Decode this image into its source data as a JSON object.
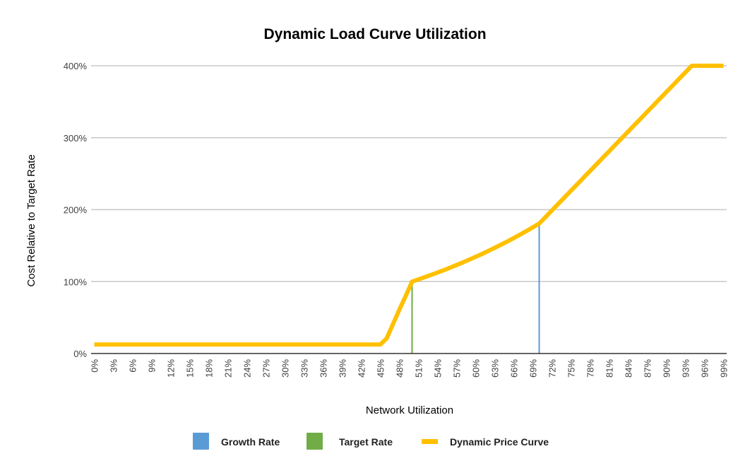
{
  "chart_data": {
    "type": "line",
    "title": "Dynamic Load Curve Utilization",
    "xlabel": "Network Utilization",
    "ylabel": "Cost Relative to Target Rate",
    "x_unit": "%",
    "x_tick_step": 3,
    "x": [
      0,
      1,
      2,
      3,
      4,
      5,
      6,
      7,
      8,
      9,
      10,
      11,
      12,
      13,
      14,
      15,
      16,
      17,
      18,
      19,
      20,
      21,
      22,
      23,
      24,
      25,
      26,
      27,
      28,
      29,
      30,
      31,
      32,
      33,
      34,
      35,
      36,
      37,
      38,
      39,
      40,
      41,
      42,
      43,
      44,
      45,
      46,
      47,
      48,
      49,
      50,
      51,
      52,
      53,
      54,
      55,
      56,
      57,
      58,
      59,
      60,
      61,
      62,
      63,
      64,
      65,
      66,
      67,
      68,
      69,
      70,
      71,
      72,
      73,
      74,
      75,
      76,
      77,
      78,
      79,
      80,
      81,
      82,
      83,
      84,
      85,
      86,
      87,
      88,
      89,
      90,
      91,
      92,
      93,
      94,
      95,
      96,
      97,
      98,
      99
    ],
    "yticks": [
      "0%",
      "100%",
      "200%",
      "300%",
      "400%"
    ],
    "ylim": [
      0,
      400
    ],
    "grid": true,
    "legend_position": "bottom",
    "series": [
      {
        "name": "Growth Rate",
        "kind": "bar",
        "color": "#5b9bd5",
        "points": [
          {
            "x": 70,
            "y": 180.6
          }
        ]
      },
      {
        "name": "Target Rate",
        "kind": "bar",
        "color": "#70ad47",
        "points": [
          {
            "x": 50,
            "y": 100
          }
        ]
      },
      {
        "name": "Dynamic Price Curve",
        "kind": "line",
        "color": "#ffc000",
        "values": [
          12.5,
          12.5,
          12.5,
          12.5,
          12.5,
          12.5,
          12.5,
          12.5,
          12.5,
          12.5,
          12.5,
          12.5,
          12.5,
          12.5,
          12.5,
          12.5,
          12.5,
          12.5,
          12.5,
          12.5,
          12.5,
          12.5,
          12.5,
          12.5,
          12.5,
          12.5,
          12.5,
          12.5,
          12.5,
          12.5,
          12.5,
          12.5,
          12.5,
          12.5,
          12.5,
          12.5,
          12.5,
          12.5,
          12.5,
          12.5,
          12.5,
          12.5,
          12.5,
          12.5,
          12.5,
          12.5,
          21,
          41,
          61,
          80,
          100,
          103,
          106.1,
          109.3,
          112.6,
          115.9,
          119.4,
          123,
          126.7,
          130.5,
          134.4,
          138.4,
          142.6,
          146.9,
          151.3,
          155.8,
          160.5,
          165.3,
          170.2,
          175.4,
          180.6,
          189.7,
          198.9,
          208,
          217.2,
          226.3,
          235.4,
          244.6,
          253.7,
          262.9,
          272,
          281.1,
          290.3,
          299.4,
          308.6,
          317.7,
          326.8,
          336,
          345.1,
          354.3,
          363.4,
          372.5,
          381.7,
          390.8,
          400,
          400,
          400,
          400,
          400,
          400
        ]
      }
    ]
  }
}
